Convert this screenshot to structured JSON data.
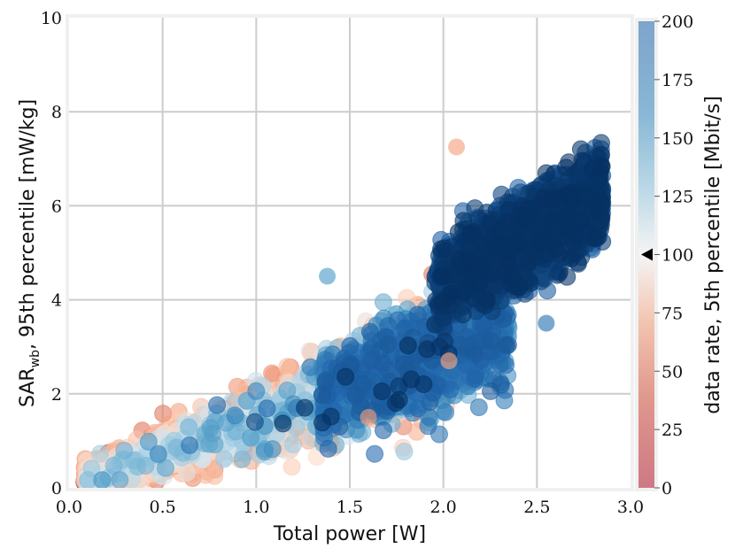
{
  "chart_data": {
    "type": "scatter",
    "xlabel": "Total power [W]",
    "ylabel_main": "SAR",
    "ylabel_sub": "wb",
    "ylabel_rest": ", 95th percentile [mW/kg]",
    "xlim": [
      0.0,
      3.0
    ],
    "ylim": [
      0,
      10
    ],
    "x_ticks": [
      "0.0",
      "0.5",
      "1.0",
      "1.5",
      "2.0",
      "2.5",
      "3.0"
    ],
    "y_ticks": [
      "0",
      "2",
      "4",
      "6",
      "8",
      "10"
    ],
    "grid": true,
    "colorbar": {
      "label": "data rate, 5th percentile [Mbit/s]",
      "range": [
        0,
        200
      ],
      "ticks": [
        "0",
        "25",
        "50",
        "75",
        "100",
        "125",
        "150",
        "175",
        "200"
      ],
      "colormap": "RdBu",
      "marker_value": 100
    },
    "colors": {
      "low": "#c0394b",
      "mid": "#f7f7f7",
      "high": "#053061",
      "background": "#f0f0f0",
      "grid": "#cccccc"
    },
    "trend": "SAR increases with total power; higher data rates cluster at higher power",
    "highlighted_points": [
      {
        "x": 2.07,
        "y": 7.25,
        "rate": 60
      },
      {
        "x": 2.03,
        "y": 2.7,
        "rate": 60
      },
      {
        "x": 2.55,
        "y": 3.5,
        "rate": 170
      },
      {
        "x": 2.12,
        "y": 2.6,
        "rate": 180
      },
      {
        "x": 1.6,
        "y": 1.5,
        "rate": 55
      },
      {
        "x": 1.38,
        "y": 4.5,
        "rate": 150
      }
    ]
  }
}
